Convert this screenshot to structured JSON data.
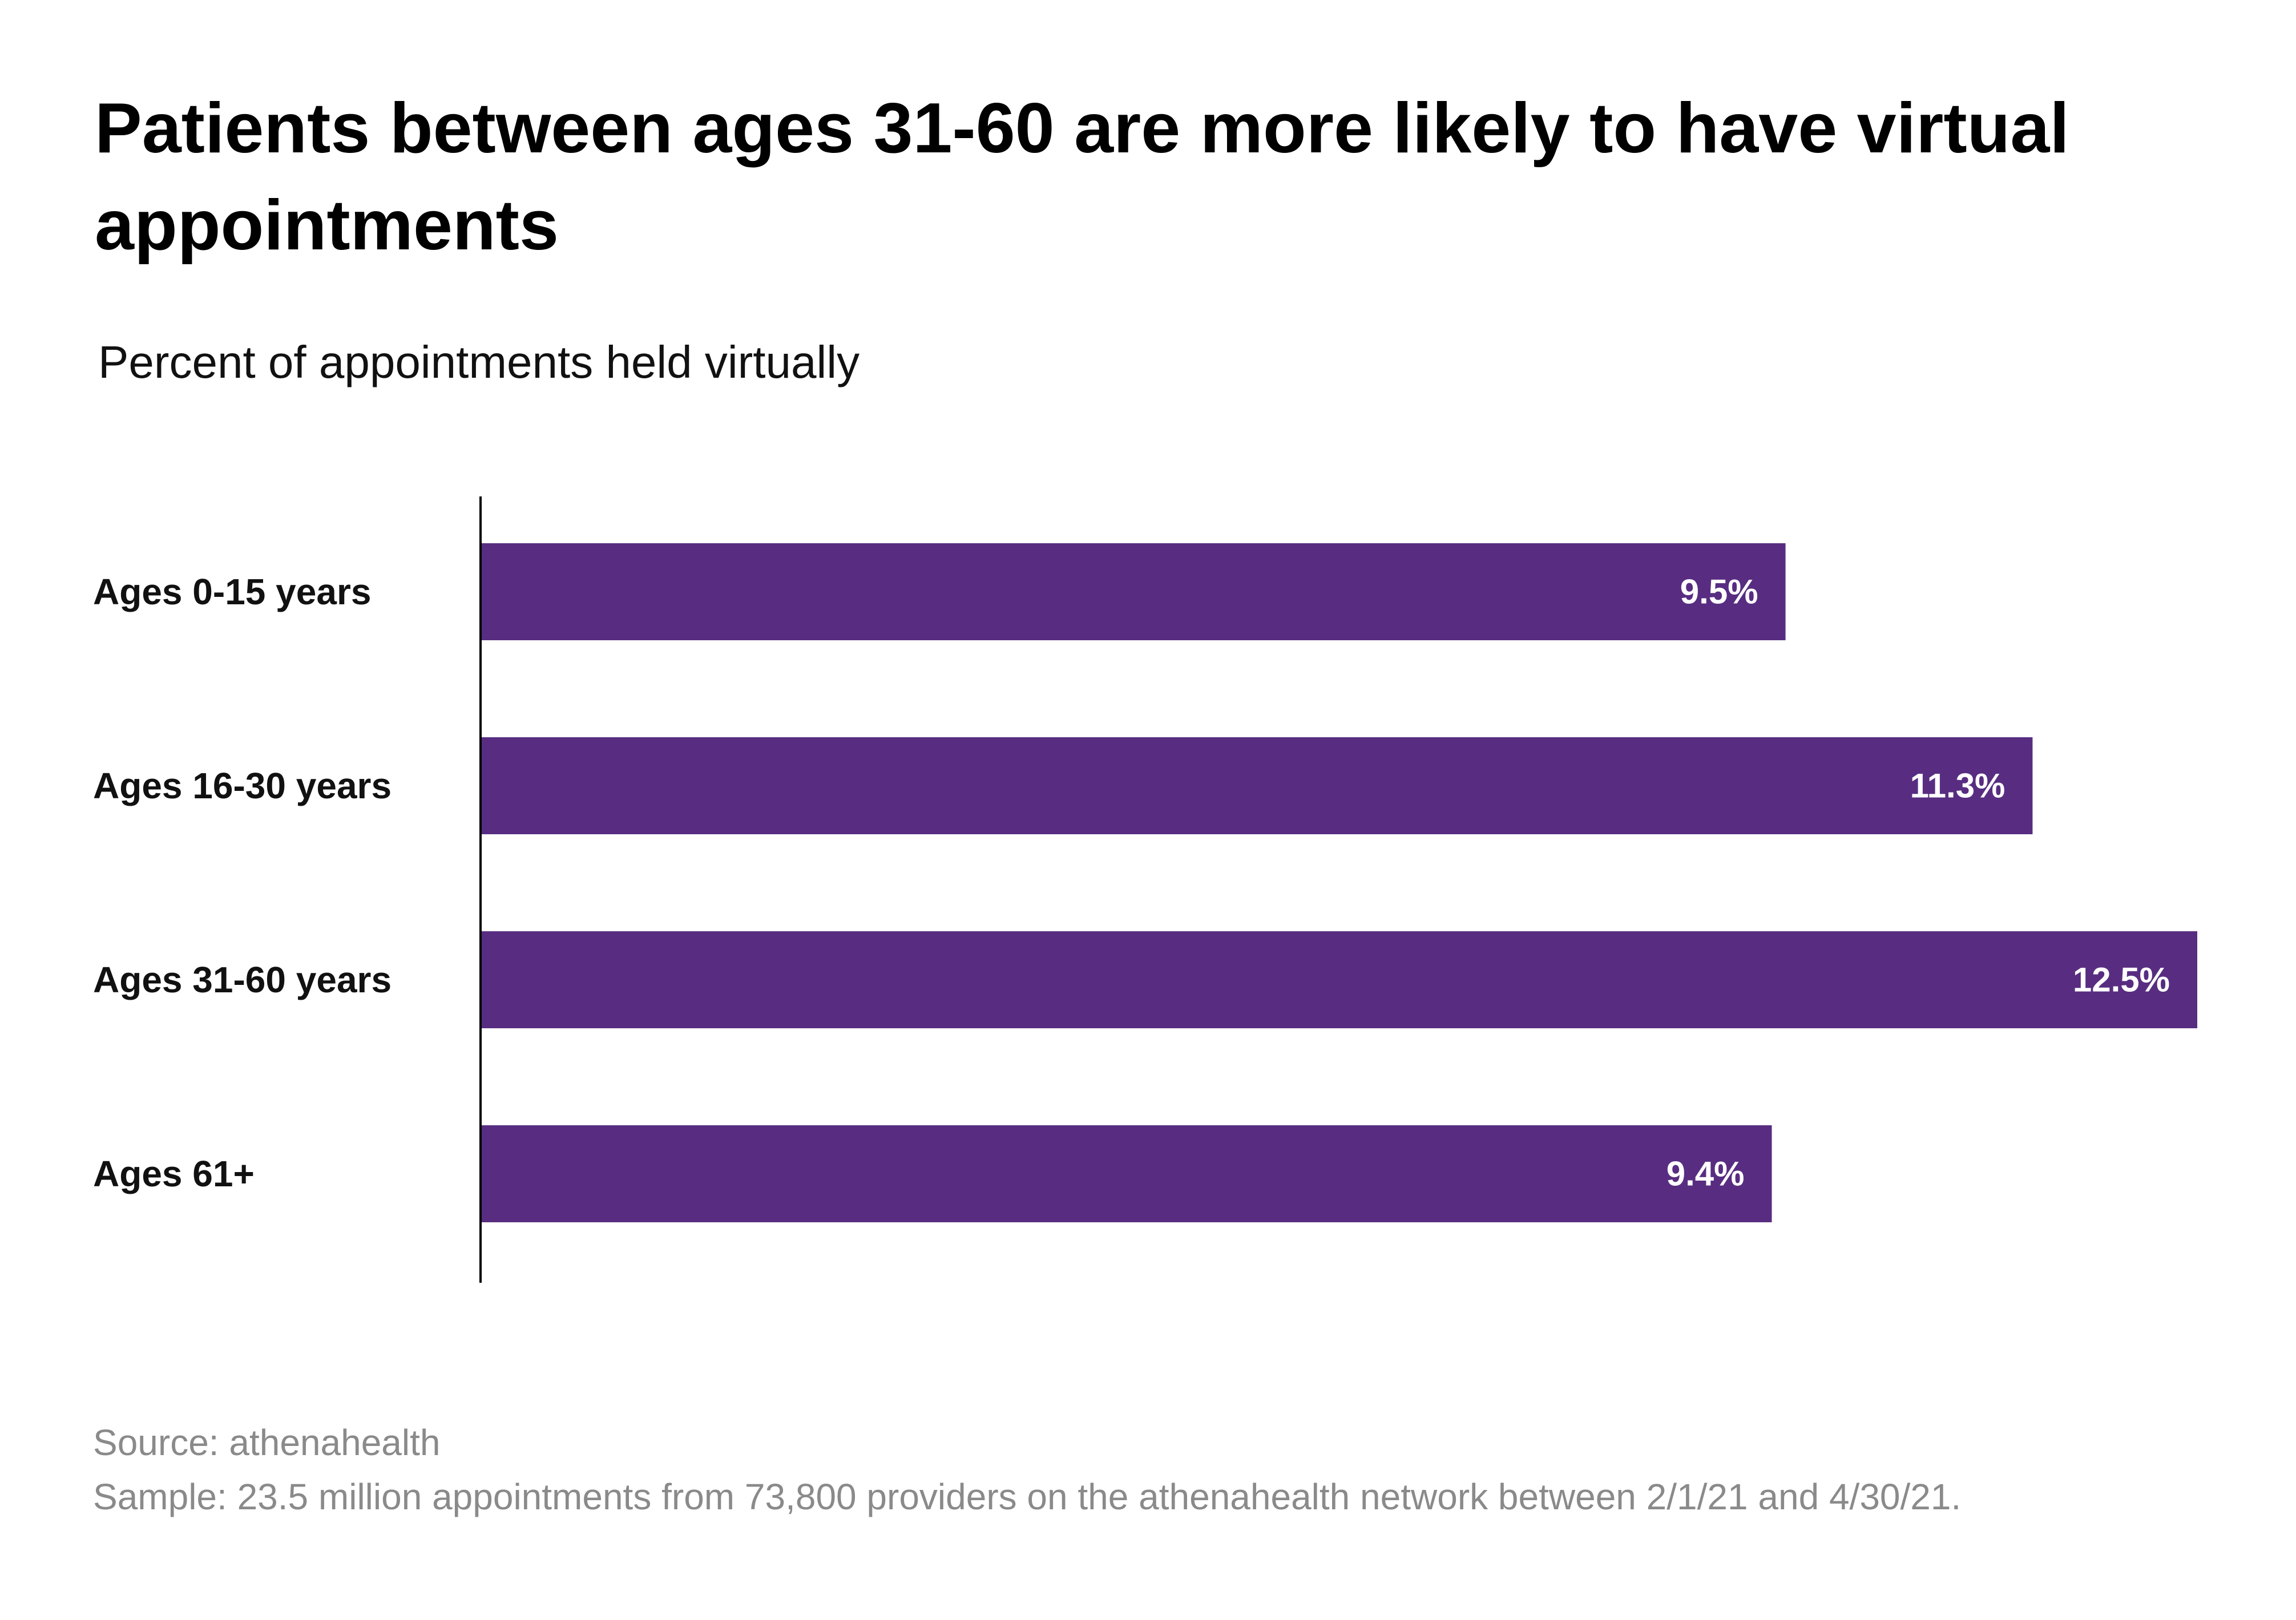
{
  "title": "Patients between ages 31-60 are more likely to have virtual appointments",
  "subtitle": "Percent of appointments held virtually",
  "colors": {
    "bar": "#582d81",
    "axis": "#000000",
    "value_text": "#ffffff",
    "note_text": "#8a8a8a"
  },
  "chart_data": {
    "type": "bar",
    "orientation": "horizontal",
    "title": "Patients between ages 31-60 are more likely to have virtual appointments",
    "subtitle": "Percent of appointments held virtually",
    "categories": [
      "Ages 0-15 years",
      "Ages 16-30 years",
      "Ages 31-60 years",
      "Ages 61+"
    ],
    "values": [
      9.5,
      11.3,
      12.5,
      9.4
    ],
    "value_labels": [
      "9.5%",
      "11.3%",
      "12.5%",
      "9.4%"
    ],
    "unit": "%",
    "xlim": [
      0,
      12.5
    ],
    "grid": false,
    "legend": "none"
  },
  "footer": {
    "source": "Source: athenahealth",
    "sample": "Sample: 23.5 million appointments from 73,800 providers on the athenahealth network between 2/1/21 and 4/30/21."
  }
}
